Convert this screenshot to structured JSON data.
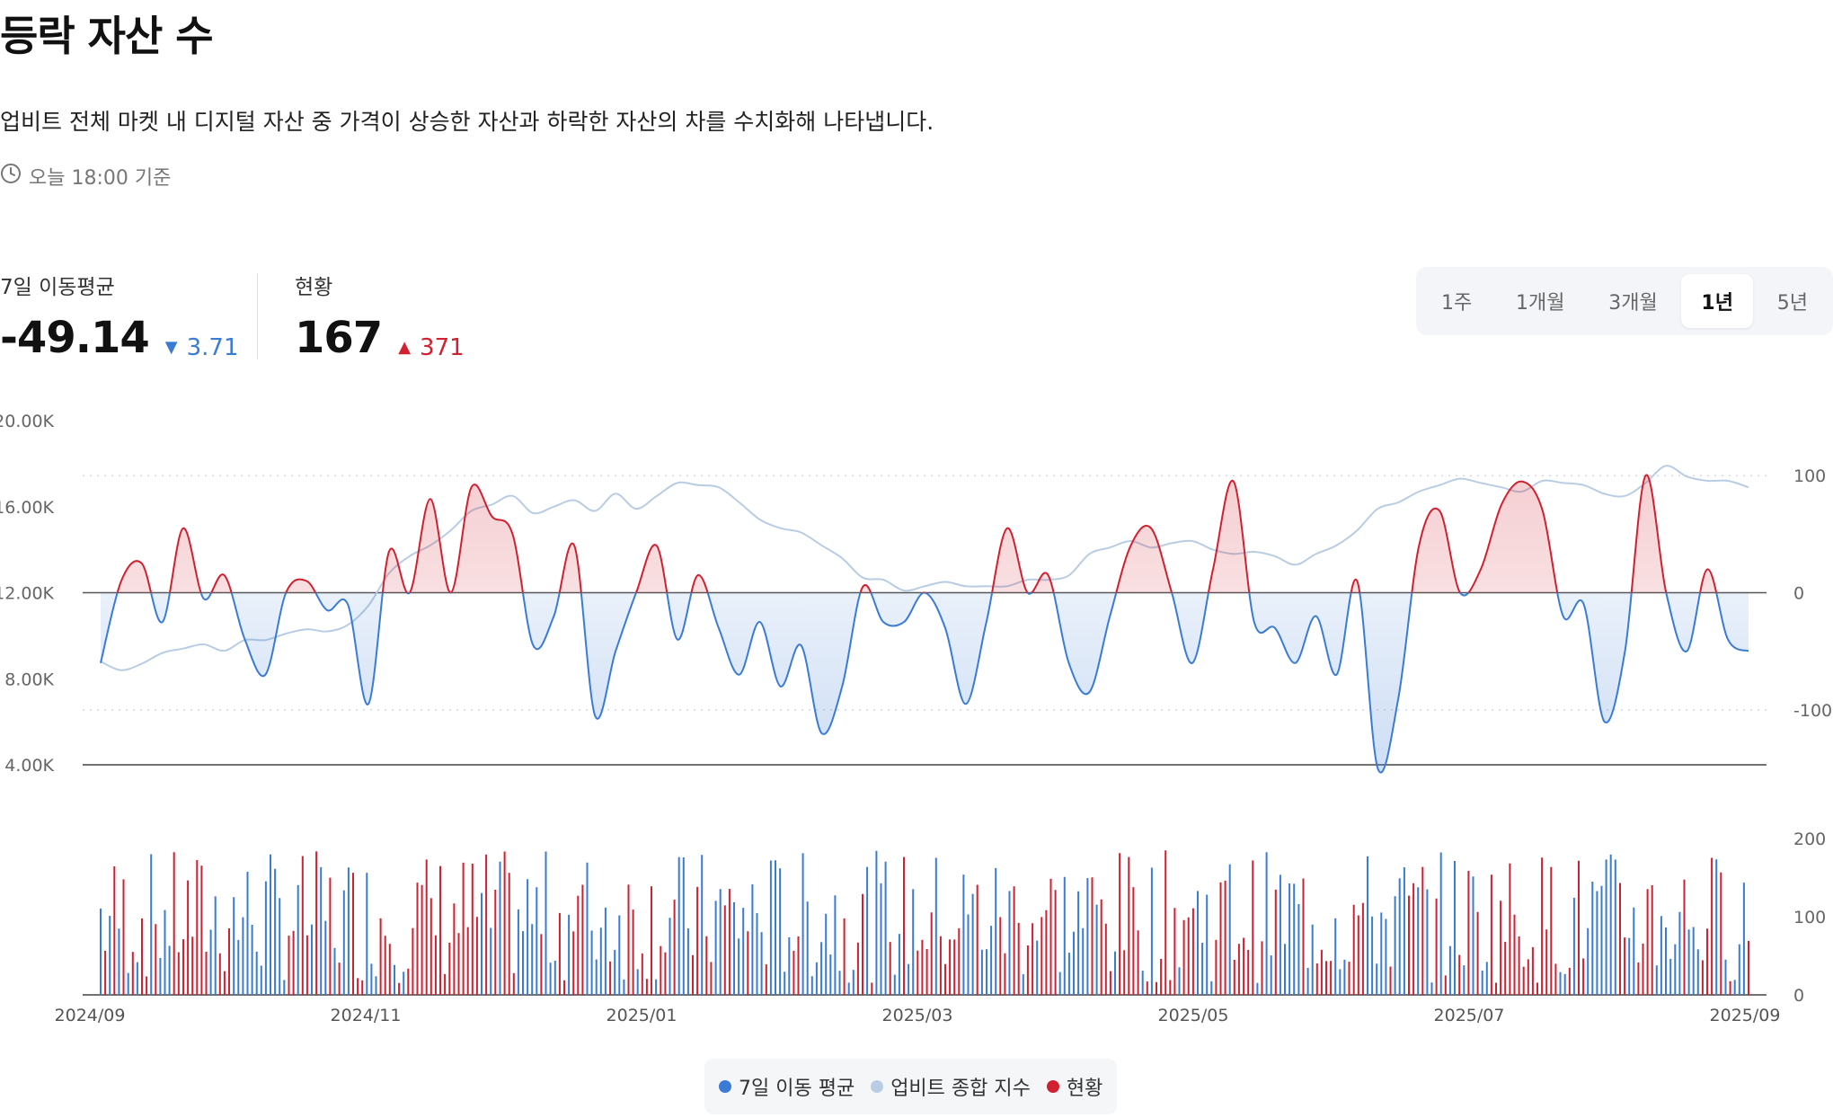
{
  "header": {
    "title": "등락 자산 수",
    "description": "업비트 전체 마켓 내 디지털 자산 중 가격이 상승한 자산과 하락한 자산의 차를 수치화해 나타냅니다.",
    "updated": "오늘 18:00 기준",
    "clock_icon": "clock-icon"
  },
  "stats": {
    "ma7": {
      "label": "7일 이동평균",
      "value": "-49.14",
      "change": "3.71",
      "direction": "down"
    },
    "current": {
      "label": "현황",
      "value": "167",
      "change": "371",
      "direction": "up"
    }
  },
  "periods": {
    "items": [
      "1주",
      "1개월",
      "3개월",
      "1년",
      "5년"
    ],
    "active": "1년"
  },
  "legend": {
    "ma7": "7일 이동 평균",
    "index": "업비트 종합 지수",
    "current": "현황"
  },
  "colors": {
    "up": "#d1202f",
    "down": "#3a7bd5",
    "index": "#b8cde3"
  },
  "chart_data": {
    "type": "line",
    "x_ticks": [
      "2024/09",
      "2024/11",
      "2025/01",
      "2025/03",
      "2025/05",
      "2025/07",
      "2025/09"
    ],
    "left_axis": {
      "ticks": [
        "20.00K",
        "16.00K",
        "12.00K",
        "8.00K",
        "4.00K"
      ],
      "ylim": [
        4000,
        20000
      ]
    },
    "right_axis": {
      "ticks": [
        "100",
        "0",
        "-100"
      ],
      "ylim": [
        -147,
        147
      ]
    },
    "bar_axis": {
      "ticks": [
        "200",
        "100",
        "0"
      ],
      "ylim": [
        0,
        200
      ]
    },
    "grid": true,
    "legend_position": "bottom-center",
    "series": [
      {
        "name": "7일 이동 평균",
        "axis": "right",
        "x_start": "2024-09-01",
        "x_step_days": 7,
        "values": [
          -60,
          10,
          25,
          -25,
          55,
          -5,
          15,
          -40,
          -70,
          0,
          10,
          -15,
          -10,
          -95,
          35,
          0,
          80,
          0,
          90,
          65,
          50,
          -45,
          -20,
          40,
          -105,
          -50,
          0,
          40,
          -40,
          15,
          -30,
          -70,
          -25,
          -80,
          -45,
          -120,
          -80,
          5,
          -25,
          -25,
          0,
          -30,
          -95,
          -25,
          55,
          0,
          15,
          -60,
          -85,
          -20,
          40,
          55,
          0,
          -60,
          20,
          95,
          -25,
          -30,
          -60,
          -20,
          -70,
          10,
          -150,
          -90,
          40,
          70,
          0,
          20,
          75,
          95,
          70,
          -20,
          -10,
          -110,
          -50,
          100,
          0,
          -50,
          20,
          -40,
          -50
        ]
      },
      {
        "name": "업비트 종합 지수",
        "axis": "left",
        "x_start": "2024-09-01",
        "x_step_days": 7,
        "values": [
          8800,
          8400,
          8700,
          9200,
          9400,
          9600,
          9300,
          9800,
          9800,
          10100,
          10300,
          10200,
          10500,
          11400,
          12900,
          13700,
          14200,
          14900,
          15800,
          16100,
          16500,
          15700,
          16000,
          16300,
          15800,
          16600,
          15900,
          16500,
          17100,
          17000,
          16900,
          16200,
          15400,
          15000,
          14800,
          14200,
          13600,
          12700,
          12600,
          12100,
          12300,
          12500,
          12300,
          12300,
          12300,
          12600,
          12600,
          12800,
          13800,
          14100,
          14400,
          14100,
          14300,
          14400,
          14000,
          13800,
          13900,
          13700,
          13300,
          13800,
          14200,
          14900,
          15900,
          16200,
          16700,
          17000,
          17300,
          17100,
          16900,
          16700,
          17200,
          17100,
          17000,
          16600,
          16500,
          17100,
          17900,
          17400,
          17200,
          17200,
          16900
        ]
      },
      {
        "name": "현황",
        "type": "bar",
        "axis": "bar",
        "x_start": "2024-09-01",
        "x_step_days": 1,
        "note": "daily bars colored red (positive) / blue (negative), height = magnitude",
        "max": 200
      }
    ]
  }
}
